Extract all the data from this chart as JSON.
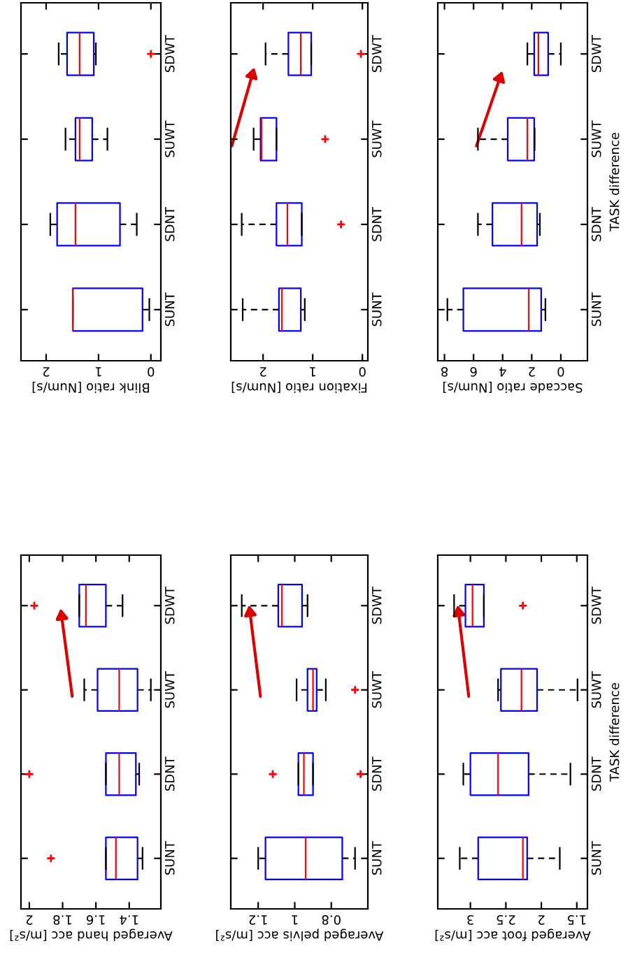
{
  "chart_data": [
    {
      "type": "box",
      "orientation": "horizontal",
      "categories": [
        "SDWT",
        "SUWT",
        "SDNT",
        "SUNT"
      ],
      "xlabel": "Blink ratio [Num/s]",
      "xlim": [
        2.48,
        -0.19
      ],
      "xticks": [
        0,
        1,
        2
      ],
      "grid": false,
      "series": [
        {
          "color": "#0000ff",
          "boxes": [
            {
              "low": 1.05,
              "q1": 1.09,
              "median": 1.36,
              "q3": 1.6,
              "high": 1.76,
              "outliers": [
                0
              ]
            },
            {
              "low": 0.83,
              "q1": 1.12,
              "median": 1.36,
              "q3": 1.44,
              "high": 1.63
            },
            {
              "low": 0.27,
              "q1": 0.59,
              "median": 1.44,
              "q3": 1.79,
              "high": 1.92
            },
            {
              "low": 0.03,
              "q1": 0.16,
              "median": 1.49,
              "q3": 1.49,
              "high": 1.49
            }
          ]
        }
      ]
    },
    {
      "type": "box",
      "orientation": "horizontal",
      "categories": [
        "SDWT",
        "SUWT",
        "SDNT",
        "SUNT"
      ],
      "xlabel": "Fixation ratio [Num/s]",
      "xlim": [
        2.65,
        -0.11
      ],
      "xticks": [
        0,
        1,
        2
      ],
      "grid": false,
      "series": [
        {
          "color": "#0000ff",
          "boxes": [
            {
              "low": 1.03,
              "q1": 1.03,
              "median": 1.24,
              "q3": 1.49,
              "high": 1.95,
              "outliers": [
                0.03
              ]
            },
            {
              "low": 1.73,
              "q1": 1.73,
              "median": 2.03,
              "q3": 2.05,
              "high": 2.19,
              "outliers": [
                0.75
              ]
            },
            {
              "low": 1.22,
              "q1": 1.22,
              "median": 1.51,
              "q3": 1.73,
              "high": 2.43,
              "outliers": [
                0.43
              ]
            },
            {
              "low": 1.16,
              "q1": 1.24,
              "median": 1.62,
              "q3": 1.68,
              "high": 2.41
            }
          ]
        }
      ]
    },
    {
      "type": "box",
      "orientation": "horizontal",
      "categories": [
        "SDWT",
        "SUWT",
        "SDNT",
        "SUNT"
      ],
      "xlabel": "Saccade ratio [Num/s]",
      "ylabel": "TASK difference",
      "xlim": [
        8.46,
        -1.83
      ],
      "xticks": [
        0,
        2,
        4,
        6,
        8
      ],
      "grid": false,
      "series": [
        {
          "color": "#0000ff",
          "boxes": [
            {
              "low": 0,
              "q1": 0.87,
              "median": 1.54,
              "q3": 1.83,
              "high": 2.3
            },
            {
              "low": 1.8,
              "q1": 1.83,
              "median": 2.3,
              "q3": 3.65,
              "high": 5.7
            },
            {
              "low": 1.44,
              "q1": 1.63,
              "median": 2.7,
              "q3": 4.7,
              "high": 5.7
            },
            {
              "low": 1.06,
              "q1": 1.35,
              "median": 2.2,
              "q3": 6.7,
              "high": 7.8
            }
          ]
        }
      ]
    },
    {
      "type": "box",
      "orientation": "horizontal",
      "categories": [
        "SDWT",
        "SUWT",
        "SDNT",
        "SUNT"
      ],
      "xlabel": "Averaged hand acc [m/s²]",
      "xlim": [
        2.05,
        1.21
      ],
      "xticks": [
        1.4,
        1.6,
        1.8,
        2
      ],
      "grid": false,
      "series": [
        {
          "color": "#0000ff",
          "boxes": [
            {
              "low": 1.44,
              "q1": 1.54,
              "median": 1.66,
              "q3": 1.7,
              "high": 1.7,
              "outliers": [
                1.97
              ]
            },
            {
              "low": 1.27,
              "q1": 1.35,
              "median": 1.46,
              "q3": 1.59,
              "high": 1.67
            },
            {
              "low": 1.34,
              "q1": 1.36,
              "median": 1.46,
              "q3": 1.54,
              "high": 1.54,
              "outliers": [
                2.0
              ]
            },
            {
              "low": 1.32,
              "q1": 1.35,
              "median": 1.48,
              "q3": 1.54,
              "high": 1.54,
              "outliers": [
                1.87
              ]
            }
          ]
        }
      ]
    },
    {
      "type": "box",
      "orientation": "horizontal",
      "categories": [
        "SDWT",
        "SUWT",
        "SDNT",
        "SUNT"
      ],
      "xlabel": "Averaged pelvis acc [m/s²]",
      "xlim": [
        1.35,
        0.6
      ],
      "xticks": [
        0.8,
        1,
        1.2
      ],
      "grid": false,
      "series": [
        {
          "color": "#0000ff",
          "boxes": [
            {
              "low": 0.93,
              "q1": 0.96,
              "median": 1.07,
              "q3": 1.09,
              "high": 1.29
            },
            {
              "low": 0.83,
              "q1": 0.88,
              "median": 0.9,
              "q3": 0.93,
              "high": 0.99,
              "outliers": [
                0.67
              ]
            },
            {
              "low": 0.9,
              "q1": 0.9,
              "median": 0.95,
              "q3": 0.98,
              "high": 0.98,
              "outliers": [
                1.12,
                0.64
              ]
            },
            {
              "low": 0.67,
              "q1": 0.74,
              "median": 0.94,
              "q3": 1.16,
              "high": 1.2
            }
          ]
        }
      ]
    },
    {
      "type": "box",
      "orientation": "horizontal",
      "categories": [
        "SDWT",
        "SUWT",
        "SDNT",
        "SUNT"
      ],
      "xlabel": "Averaged foot acc [m/s²]",
      "ylabel": "TASK difference",
      "xlim": [
        3.46,
        1.35
      ],
      "xticks": [
        1.5,
        2,
        2.5,
        3
      ],
      "grid": false,
      "series": [
        {
          "color": "#0000ff",
          "boxes": [
            {
              "low": 2.81,
              "q1": 2.81,
              "median": 2.97,
              "q3": 3.07,
              "high": 3.23,
              "outliers": [
                2.26
              ]
            },
            {
              "low": 1.49,
              "q1": 2.06,
              "median": 2.28,
              "q3": 2.57,
              "high": 2.61
            },
            {
              "low": 1.59,
              "q1": 2.18,
              "median": 2.61,
              "q3": 3.0,
              "high": 3.1
            },
            {
              "low": 1.74,
              "q1": 2.2,
              "median": 2.26,
              "q3": 2.89,
              "high": 3.15
            }
          ]
        }
      ]
    }
  ]
}
